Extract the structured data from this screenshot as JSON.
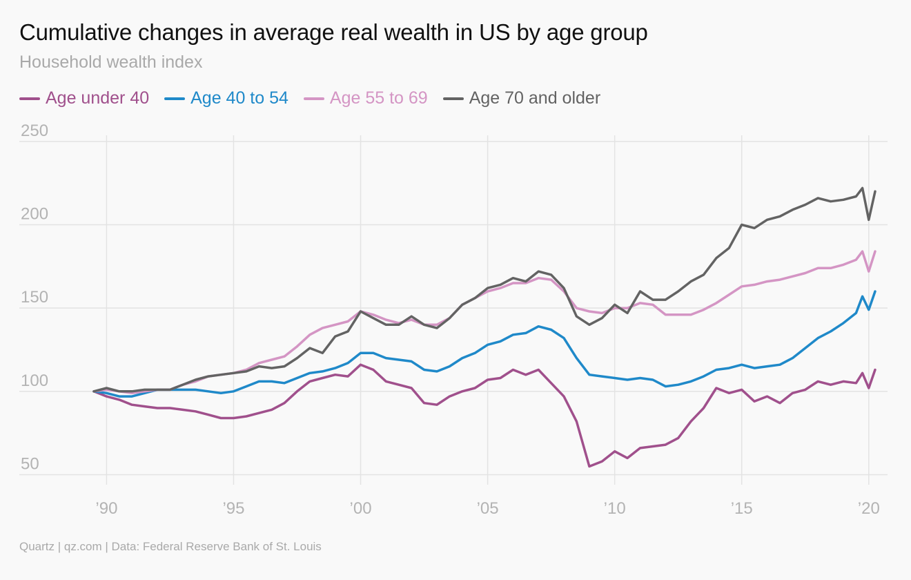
{
  "title": "Cumulative changes in average real wealth in US by age group",
  "subtitle": "Household wealth index",
  "footer": "Quartz | qz.com | Data: Federal Reserve Bank of St. Louis",
  "chart_data": {
    "type": "line",
    "title": "Cumulative changes in average real wealth in US by age group",
    "subtitle": "Household wealth index",
    "xlabel": "",
    "ylabel": "",
    "xlim": [
      1989.5,
      2020.25
    ],
    "ylim": [
      44,
      252
    ],
    "x_ticks": [
      1990,
      1995,
      2000,
      2005,
      2010,
      2015,
      2020
    ],
    "x_tick_labels": [
      "’90",
      "’95",
      "’00",
      "’05",
      "’10",
      "’15",
      "’20"
    ],
    "y_ticks": [
      50,
      100,
      150,
      200,
      250
    ],
    "y_tick_labels": [
      "50",
      "100",
      "150",
      "200",
      "250"
    ],
    "grid": true,
    "legend_position": "top-left",
    "series": [
      {
        "name": "Age under 40",
        "color": "#a0508c",
        "points": [
          [
            1989.5,
            100
          ],
          [
            1990,
            97
          ],
          [
            1990.5,
            95
          ],
          [
            1991,
            92
          ],
          [
            1991.5,
            91
          ],
          [
            1992,
            90
          ],
          [
            1992.5,
            90
          ],
          [
            1993,
            89
          ],
          [
            1993.5,
            88
          ],
          [
            1994,
            86
          ],
          [
            1994.5,
            84
          ],
          [
            1995,
            84
          ],
          [
            1995.5,
            85
          ],
          [
            1996,
            87
          ],
          [
            1996.5,
            89
          ],
          [
            1997,
            93
          ],
          [
            1997.5,
            100
          ],
          [
            1998,
            106
          ],
          [
            1998.5,
            108
          ],
          [
            1999,
            110
          ],
          [
            1999.5,
            109
          ],
          [
            2000,
            116
          ],
          [
            2000.5,
            113
          ],
          [
            2001,
            106
          ],
          [
            2001.5,
            104
          ],
          [
            2002,
            102
          ],
          [
            2002.5,
            93
          ],
          [
            2003,
            92
          ],
          [
            2003.5,
            97
          ],
          [
            2004,
            100
          ],
          [
            2004.5,
            102
          ],
          [
            2005,
            107
          ],
          [
            2005.5,
            108
          ],
          [
            2006,
            113
          ],
          [
            2006.5,
            110
          ],
          [
            2007,
            113
          ],
          [
            2007.5,
            105
          ],
          [
            2008,
            97
          ],
          [
            2008.5,
            82
          ],
          [
            2009,
            55
          ],
          [
            2009.5,
            58
          ],
          [
            2010,
            64
          ],
          [
            2010.5,
            60
          ],
          [
            2011,
            66
          ],
          [
            2011.5,
            67
          ],
          [
            2012,
            68
          ],
          [
            2012.5,
            72
          ],
          [
            2013,
            82
          ],
          [
            2013.5,
            90
          ],
          [
            2014,
            102
          ],
          [
            2014.5,
            99
          ],
          [
            2015,
            101
          ],
          [
            2015.5,
            94
          ],
          [
            2016,
            97
          ],
          [
            2016.5,
            93
          ],
          [
            2017,
            99
          ],
          [
            2017.5,
            101
          ],
          [
            2018,
            106
          ],
          [
            2018.5,
            104
          ],
          [
            2019,
            106
          ],
          [
            2019.5,
            105
          ],
          [
            2019.75,
            111
          ],
          [
            2020,
            102
          ],
          [
            2020.25,
            113
          ]
        ]
      },
      {
        "name": "Age 40 to 54",
        "color": "#1f89c9",
        "points": [
          [
            1989.5,
            100
          ],
          [
            1990,
            99
          ],
          [
            1990.5,
            97
          ],
          [
            1991,
            97
          ],
          [
            1991.5,
            99
          ],
          [
            1992,
            101
          ],
          [
            1992.5,
            101
          ],
          [
            1993,
            101
          ],
          [
            1993.5,
            101
          ],
          [
            1994,
            100
          ],
          [
            1994.5,
            99
          ],
          [
            1995,
            100
          ],
          [
            1995.5,
            103
          ],
          [
            1996,
            106
          ],
          [
            1996.5,
            106
          ],
          [
            1997,
            105
          ],
          [
            1997.5,
            108
          ],
          [
            1998,
            111
          ],
          [
            1998.5,
            112
          ],
          [
            1999,
            114
          ],
          [
            1999.5,
            117
          ],
          [
            2000,
            123
          ],
          [
            2000.5,
            123
          ],
          [
            2001,
            120
          ],
          [
            2001.5,
            119
          ],
          [
            2002,
            118
          ],
          [
            2002.5,
            113
          ],
          [
            2003,
            112
          ],
          [
            2003.5,
            115
          ],
          [
            2004,
            120
          ],
          [
            2004.5,
            123
          ],
          [
            2005,
            128
          ],
          [
            2005.5,
            130
          ],
          [
            2006,
            134
          ],
          [
            2006.5,
            135
          ],
          [
            2007,
            139
          ],
          [
            2007.5,
            137
          ],
          [
            2008,
            132
          ],
          [
            2008.5,
            120
          ],
          [
            2009,
            110
          ],
          [
            2009.5,
            109
          ],
          [
            2010,
            108
          ],
          [
            2010.5,
            107
          ],
          [
            2011,
            108
          ],
          [
            2011.5,
            107
          ],
          [
            2012,
            103
          ],
          [
            2012.5,
            104
          ],
          [
            2013,
            106
          ],
          [
            2013.5,
            109
          ],
          [
            2014,
            113
          ],
          [
            2014.5,
            114
          ],
          [
            2015,
            116
          ],
          [
            2015.5,
            114
          ],
          [
            2016,
            115
          ],
          [
            2016.5,
            116
          ],
          [
            2017,
            120
          ],
          [
            2017.5,
            126
          ],
          [
            2018,
            132
          ],
          [
            2018.5,
            136
          ],
          [
            2019,
            141
          ],
          [
            2019.5,
            147
          ],
          [
            2019.75,
            157
          ],
          [
            2020,
            149
          ],
          [
            2020.25,
            160
          ]
        ]
      },
      {
        "name": "Age 55 to 69",
        "color": "#d495c4",
        "points": [
          [
            1989.5,
            100
          ],
          [
            1990,
            101
          ],
          [
            1990.5,
            100
          ],
          [
            1991,
            99
          ],
          [
            1991.5,
            100
          ],
          [
            1992,
            101
          ],
          [
            1992.5,
            101
          ],
          [
            1993,
            104
          ],
          [
            1993.5,
            106
          ],
          [
            1994,
            109
          ],
          [
            1994.5,
            110
          ],
          [
            1995,
            111
          ],
          [
            1995.5,
            113
          ],
          [
            1996,
            117
          ],
          [
            1996.5,
            119
          ],
          [
            1997,
            121
          ],
          [
            1997.5,
            127
          ],
          [
            1998,
            134
          ],
          [
            1998.5,
            138
          ],
          [
            1999,
            140
          ],
          [
            1999.5,
            142
          ],
          [
            2000,
            148
          ],
          [
            2000.5,
            146
          ],
          [
            2001,
            143
          ],
          [
            2001.5,
            141
          ],
          [
            2002,
            143
          ],
          [
            2002.5,
            140
          ],
          [
            2003,
            140
          ],
          [
            2003.5,
            144
          ],
          [
            2004,
            152
          ],
          [
            2004.5,
            156
          ],
          [
            2005,
            160
          ],
          [
            2005.5,
            162
          ],
          [
            2006,
            165
          ],
          [
            2006.5,
            165
          ],
          [
            2007,
            168
          ],
          [
            2007.5,
            167
          ],
          [
            2008,
            160
          ],
          [
            2008.5,
            150
          ],
          [
            2009,
            148
          ],
          [
            2009.5,
            147
          ],
          [
            2010,
            150
          ],
          [
            2010.5,
            150
          ],
          [
            2011,
            153
          ],
          [
            2011.5,
            152
          ],
          [
            2012,
            146
          ],
          [
            2012.5,
            146
          ],
          [
            2013,
            146
          ],
          [
            2013.5,
            149
          ],
          [
            2014,
            153
          ],
          [
            2014.5,
            158
          ],
          [
            2015,
            163
          ],
          [
            2015.5,
            164
          ],
          [
            2016,
            166
          ],
          [
            2016.5,
            167
          ],
          [
            2017,
            169
          ],
          [
            2017.5,
            171
          ],
          [
            2018,
            174
          ],
          [
            2018.5,
            174
          ],
          [
            2019,
            176
          ],
          [
            2019.5,
            179
          ],
          [
            2019.75,
            184
          ],
          [
            2020,
            172
          ],
          [
            2020.25,
            184
          ]
        ]
      },
      {
        "name": "Age 70 and older",
        "color": "#636363",
        "points": [
          [
            1989.5,
            100
          ],
          [
            1990,
            102
          ],
          [
            1990.5,
            100
          ],
          [
            1991,
            100
          ],
          [
            1991.5,
            101
          ],
          [
            1992,
            101
          ],
          [
            1992.5,
            101
          ],
          [
            1993,
            104
          ],
          [
            1993.5,
            107
          ],
          [
            1994,
            109
          ],
          [
            1994.5,
            110
          ],
          [
            1995,
            111
          ],
          [
            1995.5,
            112
          ],
          [
            1996,
            115
          ],
          [
            1996.5,
            114
          ],
          [
            1997,
            115
          ],
          [
            1997.5,
            120
          ],
          [
            1998,
            126
          ],
          [
            1998.5,
            123
          ],
          [
            1999,
            133
          ],
          [
            1999.5,
            136
          ],
          [
            2000,
            148
          ],
          [
            2000.5,
            144
          ],
          [
            2001,
            140
          ],
          [
            2001.5,
            140
          ],
          [
            2002,
            145
          ],
          [
            2002.5,
            140
          ],
          [
            2003,
            138
          ],
          [
            2003.5,
            144
          ],
          [
            2004,
            152
          ],
          [
            2004.5,
            156
          ],
          [
            2005,
            162
          ],
          [
            2005.5,
            164
          ],
          [
            2006,
            168
          ],
          [
            2006.5,
            166
          ],
          [
            2007,
            172
          ],
          [
            2007.5,
            170
          ],
          [
            2008,
            162
          ],
          [
            2008.5,
            145
          ],
          [
            2009,
            140
          ],
          [
            2009.5,
            144
          ],
          [
            2010,
            152
          ],
          [
            2010.5,
            147
          ],
          [
            2011,
            160
          ],
          [
            2011.5,
            155
          ],
          [
            2012,
            155
          ],
          [
            2012.5,
            160
          ],
          [
            2013,
            166
          ],
          [
            2013.5,
            170
          ],
          [
            2014,
            180
          ],
          [
            2014.5,
            186
          ],
          [
            2015,
            200
          ],
          [
            2015.5,
            198
          ],
          [
            2016,
            203
          ],
          [
            2016.5,
            205
          ],
          [
            2017,
            209
          ],
          [
            2017.5,
            212
          ],
          [
            2018,
            216
          ],
          [
            2018.5,
            214
          ],
          [
            2019,
            215
          ],
          [
            2019.5,
            217
          ],
          [
            2019.75,
            222
          ],
          [
            2020,
            203
          ],
          [
            2020.25,
            220
          ]
        ]
      }
    ]
  }
}
